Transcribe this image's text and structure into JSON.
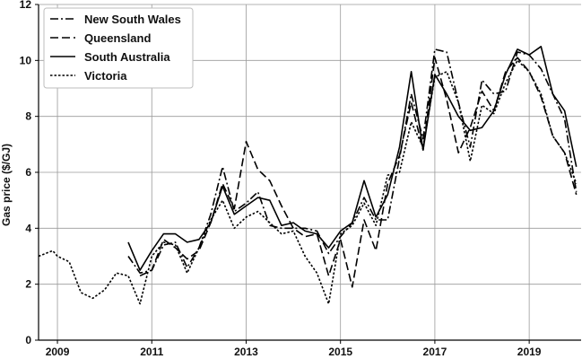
{
  "chart_data": {
    "type": "line",
    "xlabel": "",
    "ylabel": "Gas price ($/GJ)",
    "xlim": [
      2008.6,
      2020.1
    ],
    "ylim": [
      0,
      12
    ],
    "x_ticks": [
      2009,
      2011,
      2013,
      2015,
      2017,
      2019
    ],
    "x_tick_labels": [
      "2009",
      "2011",
      "2013",
      "2015",
      "2017",
      "2019"
    ],
    "y_ticks": [
      0,
      2,
      4,
      6,
      8,
      10,
      12
    ],
    "y_tick_labels": [
      "0",
      "2",
      "4",
      "6",
      "8",
      "10",
      "12"
    ],
    "grid": true,
    "legend_position": "top-left",
    "series": [
      {
        "name": "New South Wales",
        "style": "dashdot",
        "x": [
          2010.5,
          2010.75,
          2011.0,
          2011.25,
          2011.5,
          2011.75,
          2012.0,
          2012.25,
          2012.5,
          2012.75,
          2013.0,
          2013.25,
          2013.5,
          2013.75,
          2014.0,
          2014.25,
          2014.5,
          2014.75,
          2015.0,
          2015.25,
          2015.5,
          2015.75,
          2016.0,
          2016.25,
          2016.5,
          2016.75,
          2017.0,
          2017.25,
          2017.5,
          2017.75,
          2018.0,
          2018.25,
          2018.5,
          2018.75,
          2019.0,
          2019.25,
          2019.5,
          2019.75,
          2020.0
        ],
        "y": [
          3.0,
          2.4,
          2.5,
          3.4,
          3.5,
          2.6,
          3.3,
          4.5,
          6.2,
          4.6,
          4.9,
          5.3,
          4.1,
          4.0,
          4.0,
          4.0,
          3.9,
          3.1,
          3.7,
          4.2,
          5.1,
          4.3,
          4.3,
          6.5,
          8.8,
          7.2,
          10.4,
          10.3,
          8.5,
          6.9,
          9.3,
          8.8,
          8.9,
          10.3,
          10.2,
          9.7,
          8.8,
          7.9,
          5.3
        ]
      },
      {
        "name": "Queensland",
        "style": "dashed",
        "x": [
          2010.75,
          2011.0,
          2011.25,
          2011.5,
          2011.75,
          2012.0,
          2012.25,
          2012.5,
          2012.75,
          2013.0,
          2013.25,
          2013.5,
          2013.75,
          2014.0,
          2014.25,
          2014.5,
          2014.75,
          2015.0,
          2015.25,
          2015.5,
          2015.75,
          2016.0,
          2016.25,
          2016.5,
          2016.75,
          2017.0,
          2017.25,
          2017.5,
          2017.75,
          2018.0,
          2018.25,
          2018.5,
          2018.75,
          2019.0,
          2019.25,
          2019.5,
          2019.75,
          2020.0
        ],
        "y": [
          2.3,
          2.5,
          3.6,
          3.3,
          2.9,
          3.2,
          4.2,
          5.6,
          4.7,
          7.1,
          6.1,
          5.7,
          4.8,
          4.0,
          3.7,
          3.8,
          2.3,
          3.6,
          1.9,
          4.3,
          3.2,
          5.6,
          6.6,
          8.5,
          6.8,
          10.1,
          8.6,
          6.7,
          7.6,
          8.9,
          8.2,
          9.6,
          10.1,
          9.6,
          8.7,
          7.3,
          6.7,
          5.2
        ]
      },
      {
        "name": "South Australia",
        "style": "solid",
        "x": [
          2010.5,
          2010.75,
          2011.0,
          2011.25,
          2011.5,
          2011.75,
          2012.0,
          2012.25,
          2012.5,
          2012.75,
          2013.0,
          2013.25,
          2013.5,
          2013.75,
          2014.0,
          2014.25,
          2014.5,
          2014.75,
          2015.0,
          2015.25,
          2015.5,
          2015.75,
          2016.0,
          2016.25,
          2016.5,
          2016.75,
          2017.0,
          2017.25,
          2017.5,
          2017.75,
          2018.0,
          2018.25,
          2018.5,
          2018.75,
          2019.0,
          2019.25,
          2019.5,
          2019.75,
          2020.0
        ],
        "y": [
          3.5,
          2.5,
          3.2,
          3.8,
          3.8,
          3.5,
          3.6,
          4.2,
          5.5,
          4.5,
          4.8,
          5.1,
          5.0,
          4.1,
          4.2,
          3.9,
          3.8,
          3.3,
          3.9,
          4.2,
          5.7,
          4.4,
          5.2,
          6.9,
          9.6,
          6.8,
          9.5,
          8.8,
          8.0,
          7.5,
          7.6,
          8.2,
          9.5,
          10.4,
          10.2,
          10.5,
          8.8,
          8.2,
          6.2
        ]
      },
      {
        "name": "Victoria",
        "style": "dotted",
        "x": [
          2008.6,
          2008.9,
          2009.0,
          2009.25,
          2009.5,
          2009.75,
          2010.0,
          2010.25,
          2010.5,
          2010.75,
          2011.0,
          2011.25,
          2011.5,
          2011.75,
          2012.0,
          2012.25,
          2012.5,
          2012.75,
          2013.0,
          2013.25,
          2013.5,
          2013.75,
          2014.0,
          2014.25,
          2014.5,
          2014.75,
          2015.0,
          2015.25,
          2015.5,
          2015.75,
          2016.0,
          2016.25,
          2016.5,
          2016.75,
          2017.0,
          2017.25,
          2017.5,
          2017.75,
          2018.0,
          2018.25,
          2018.5,
          2018.75,
          2019.0,
          2019.25,
          2019.5,
          2019.75,
          2020.0
        ],
        "y": [
          3.0,
          3.2,
          3.0,
          2.8,
          1.7,
          1.5,
          1.8,
          2.4,
          2.3,
          1.3,
          3.0,
          3.5,
          3.4,
          2.4,
          3.3,
          4.3,
          5.0,
          4.0,
          4.4,
          4.6,
          4.2,
          3.8,
          3.9,
          3.0,
          2.4,
          1.3,
          3.8,
          4.1,
          4.9,
          4.1,
          5.9,
          6.0,
          7.8,
          6.9,
          9.4,
          9.6,
          8.5,
          6.4,
          8.4,
          8.1,
          9.2,
          10.0,
          9.6,
          8.8,
          7.3,
          6.7,
          5.6
        ]
      }
    ]
  }
}
